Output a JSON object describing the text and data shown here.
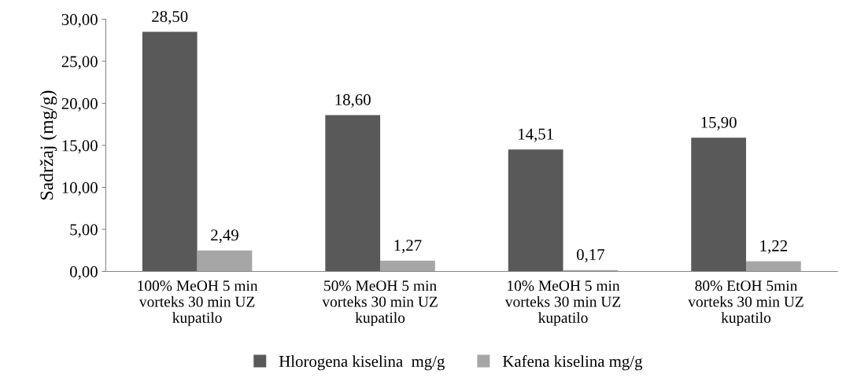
{
  "chart_data": {
    "type": "bar",
    "ylabel": "Sadržaj (mg/g)",
    "categories": [
      "100% MeOH 5 min\nvorteks 30 min UZ\nkupatilo",
      "50% MeOH 5 min\nvorteks 30 min UZ\nkupatilo",
      "10% MeOH 5 min\nvorteks 30 min UZ\nkupatilo",
      "80% EtOH 5min\nvorteks 30 min UZ\nkupatilo"
    ],
    "series": [
      {
        "name": "Hlorogena kiselina  mg/g",
        "color": "#595959",
        "values": [
          28.5,
          18.6,
          14.51,
          15.9
        ],
        "value_labels": [
          "28,50",
          "18,60",
          "14,51",
          "15,90"
        ]
      },
      {
        "name": "Kafena kiselina mg/g",
        "color": "#a6a6a6",
        "values": [
          2.49,
          1.27,
          0.17,
          1.22
        ],
        "value_labels": [
          "2,49",
          "1,27",
          "0,17",
          "1,22"
        ]
      }
    ],
    "ylim": [
      0,
      30
    ],
    "yticks": [
      {
        "value": 0,
        "label": "0,00"
      },
      {
        "value": 5,
        "label": "5,00"
      },
      {
        "value": 10,
        "label": "10,00"
      },
      {
        "value": 15,
        "label": "15,00"
      },
      {
        "value": 20,
        "label": "20,00"
      },
      {
        "value": 25,
        "label": "25,00"
      },
      {
        "value": 30,
        "label": "30,00"
      }
    ],
    "grid": false,
    "legend": "bottom"
  }
}
